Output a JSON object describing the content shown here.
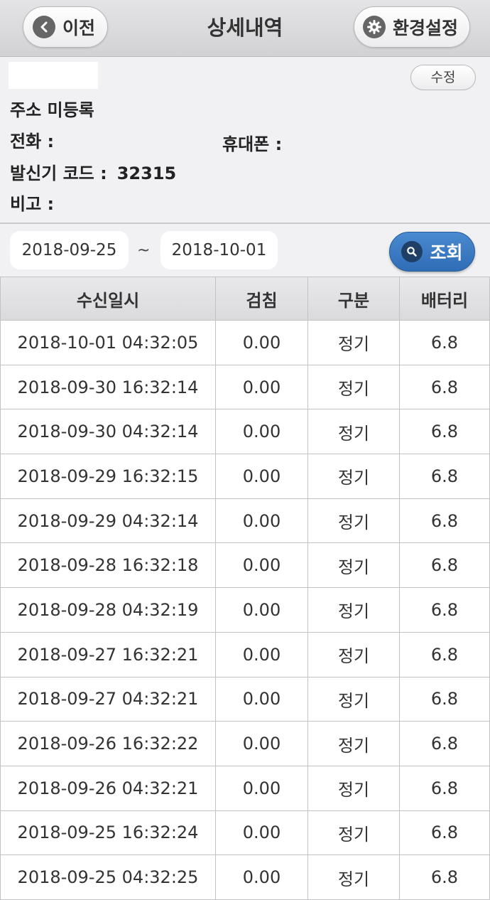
{
  "header": {
    "title": "상세내역",
    "back_label": "이전",
    "settings_label": "환경설정"
  },
  "info": {
    "edit_label": "수정",
    "address": "주소 미등록",
    "phone_label": "전화 :",
    "mobile_label": "휴대폰 :",
    "code_label": "발신기 코드  :",
    "code_value": "32315",
    "note_label": "비고  :"
  },
  "search": {
    "date_from": "2018-09-25",
    "separator": "~",
    "date_to": "2018-10-01",
    "button_label": "조회"
  },
  "table": {
    "headers": [
      "수신일시",
      "검침",
      "구분",
      "배터리"
    ],
    "rows": [
      [
        "2018-10-01 04:32:05",
        "0.00",
        "정기",
        "6.8"
      ],
      [
        "2018-09-30 16:32:14",
        "0.00",
        "정기",
        "6.8"
      ],
      [
        "2018-09-30 04:32:14",
        "0.00",
        "정기",
        "6.8"
      ],
      [
        "2018-09-29 16:32:15",
        "0.00",
        "정기",
        "6.8"
      ],
      [
        "2018-09-29 04:32:14",
        "0.00",
        "정기",
        "6.8"
      ],
      [
        "2018-09-28 16:32:18",
        "0.00",
        "정기",
        "6.8"
      ],
      [
        "2018-09-28 04:32:19",
        "0.00",
        "정기",
        "6.8"
      ],
      [
        "2018-09-27 16:32:21",
        "0.00",
        "정기",
        "6.8"
      ],
      [
        "2018-09-27 04:32:21",
        "0.00",
        "정기",
        "6.8"
      ],
      [
        "2018-09-26 16:32:22",
        "0.00",
        "정기",
        "6.8"
      ],
      [
        "2018-09-26 04:32:21",
        "0.00",
        "정기",
        "6.8"
      ],
      [
        "2018-09-25 16:32:24",
        "0.00",
        "정기",
        "6.8"
      ],
      [
        "2018-09-25 04:32:25",
        "0.00",
        "정기",
        "6.8"
      ]
    ]
  },
  "icons": {
    "back": "chevron-left-icon",
    "settings": "gear-icon",
    "search": "search-icon"
  }
}
